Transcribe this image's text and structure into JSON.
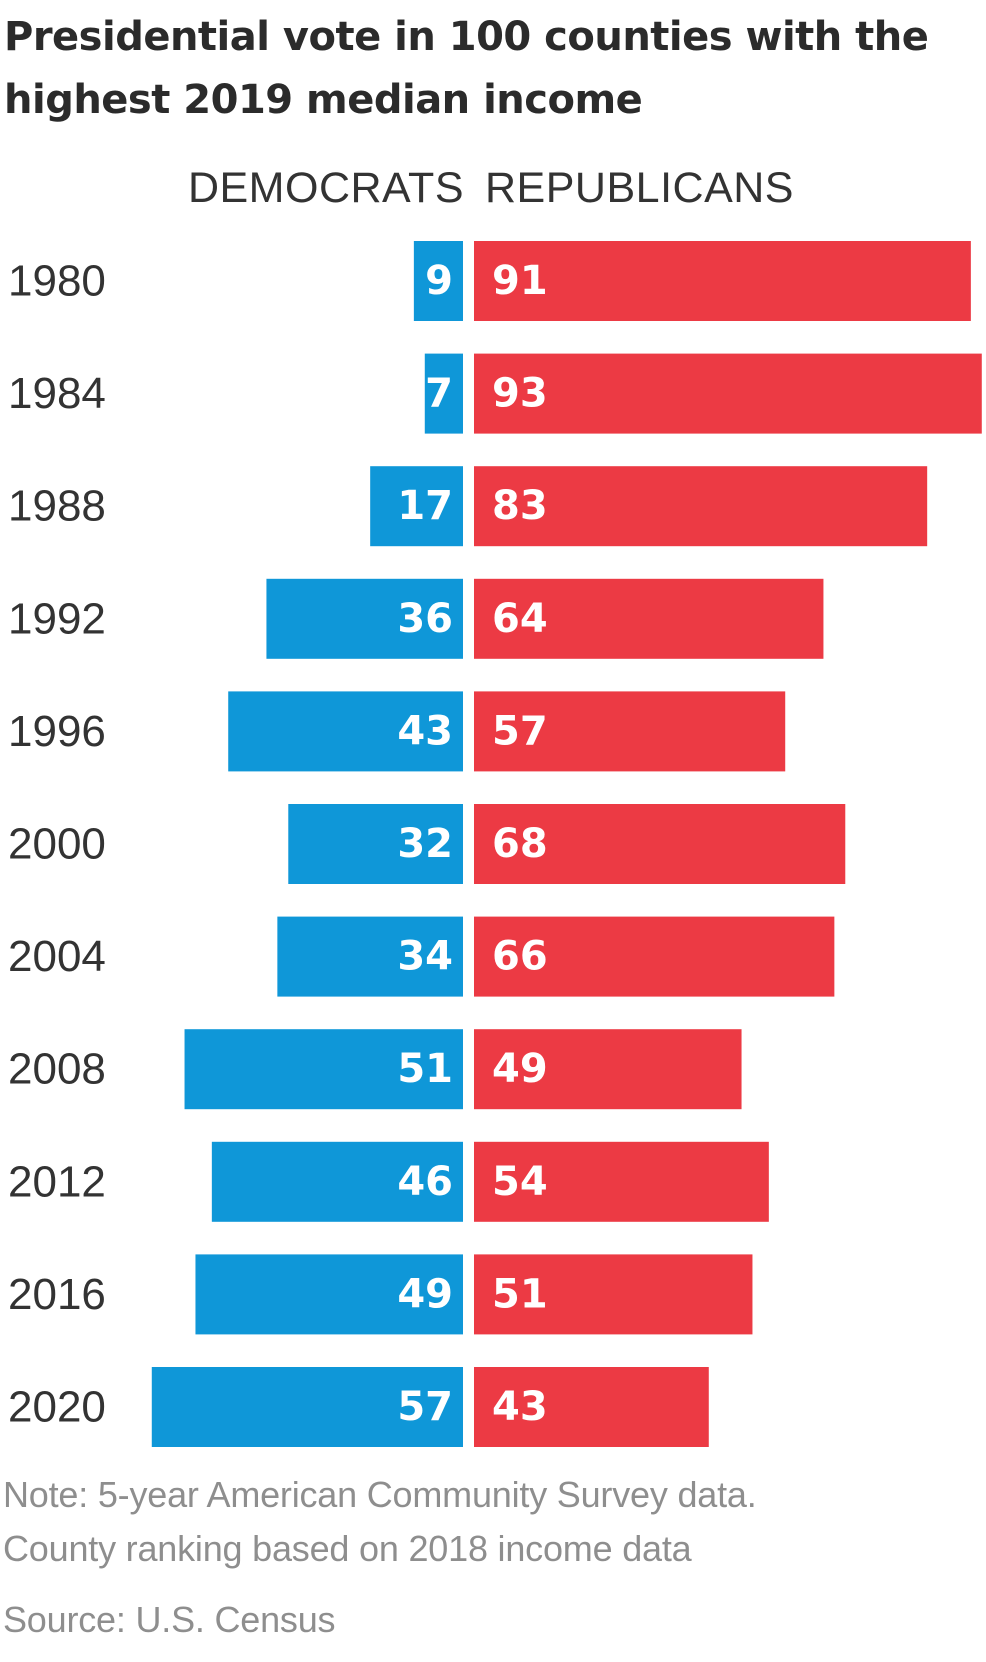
{
  "title_line1": "Presidential vote in 100 counties with the",
  "title_line2": "highest 2019 median income",
  "note_line1": "Note: 5-year American Community Survey data.",
  "note_line2": "County ranking based on 2018 income data",
  "source": "Source: U.S. Census",
  "colors": {
    "democrats": "#0f97d8",
    "republicans": "#ec3a44"
  },
  "chart_data": {
    "type": "bar",
    "orientation": "horizontal-diverging",
    "categories": [
      "1980",
      "1984",
      "1988",
      "1992",
      "1996",
      "2000",
      "2004",
      "2008",
      "2012",
      "2016",
      "2020"
    ],
    "series": [
      {
        "name": "DEMOCRATS",
        "values": [
          9,
          7,
          17,
          36,
          43,
          32,
          34,
          51,
          46,
          49,
          57
        ]
      },
      {
        "name": "REPUBLICANS",
        "values": [
          91,
          93,
          83,
          64,
          57,
          68,
          66,
          49,
          54,
          51,
          43
        ]
      }
    ],
    "data_labels": true,
    "grid": false,
    "legend_placement": "top"
  }
}
